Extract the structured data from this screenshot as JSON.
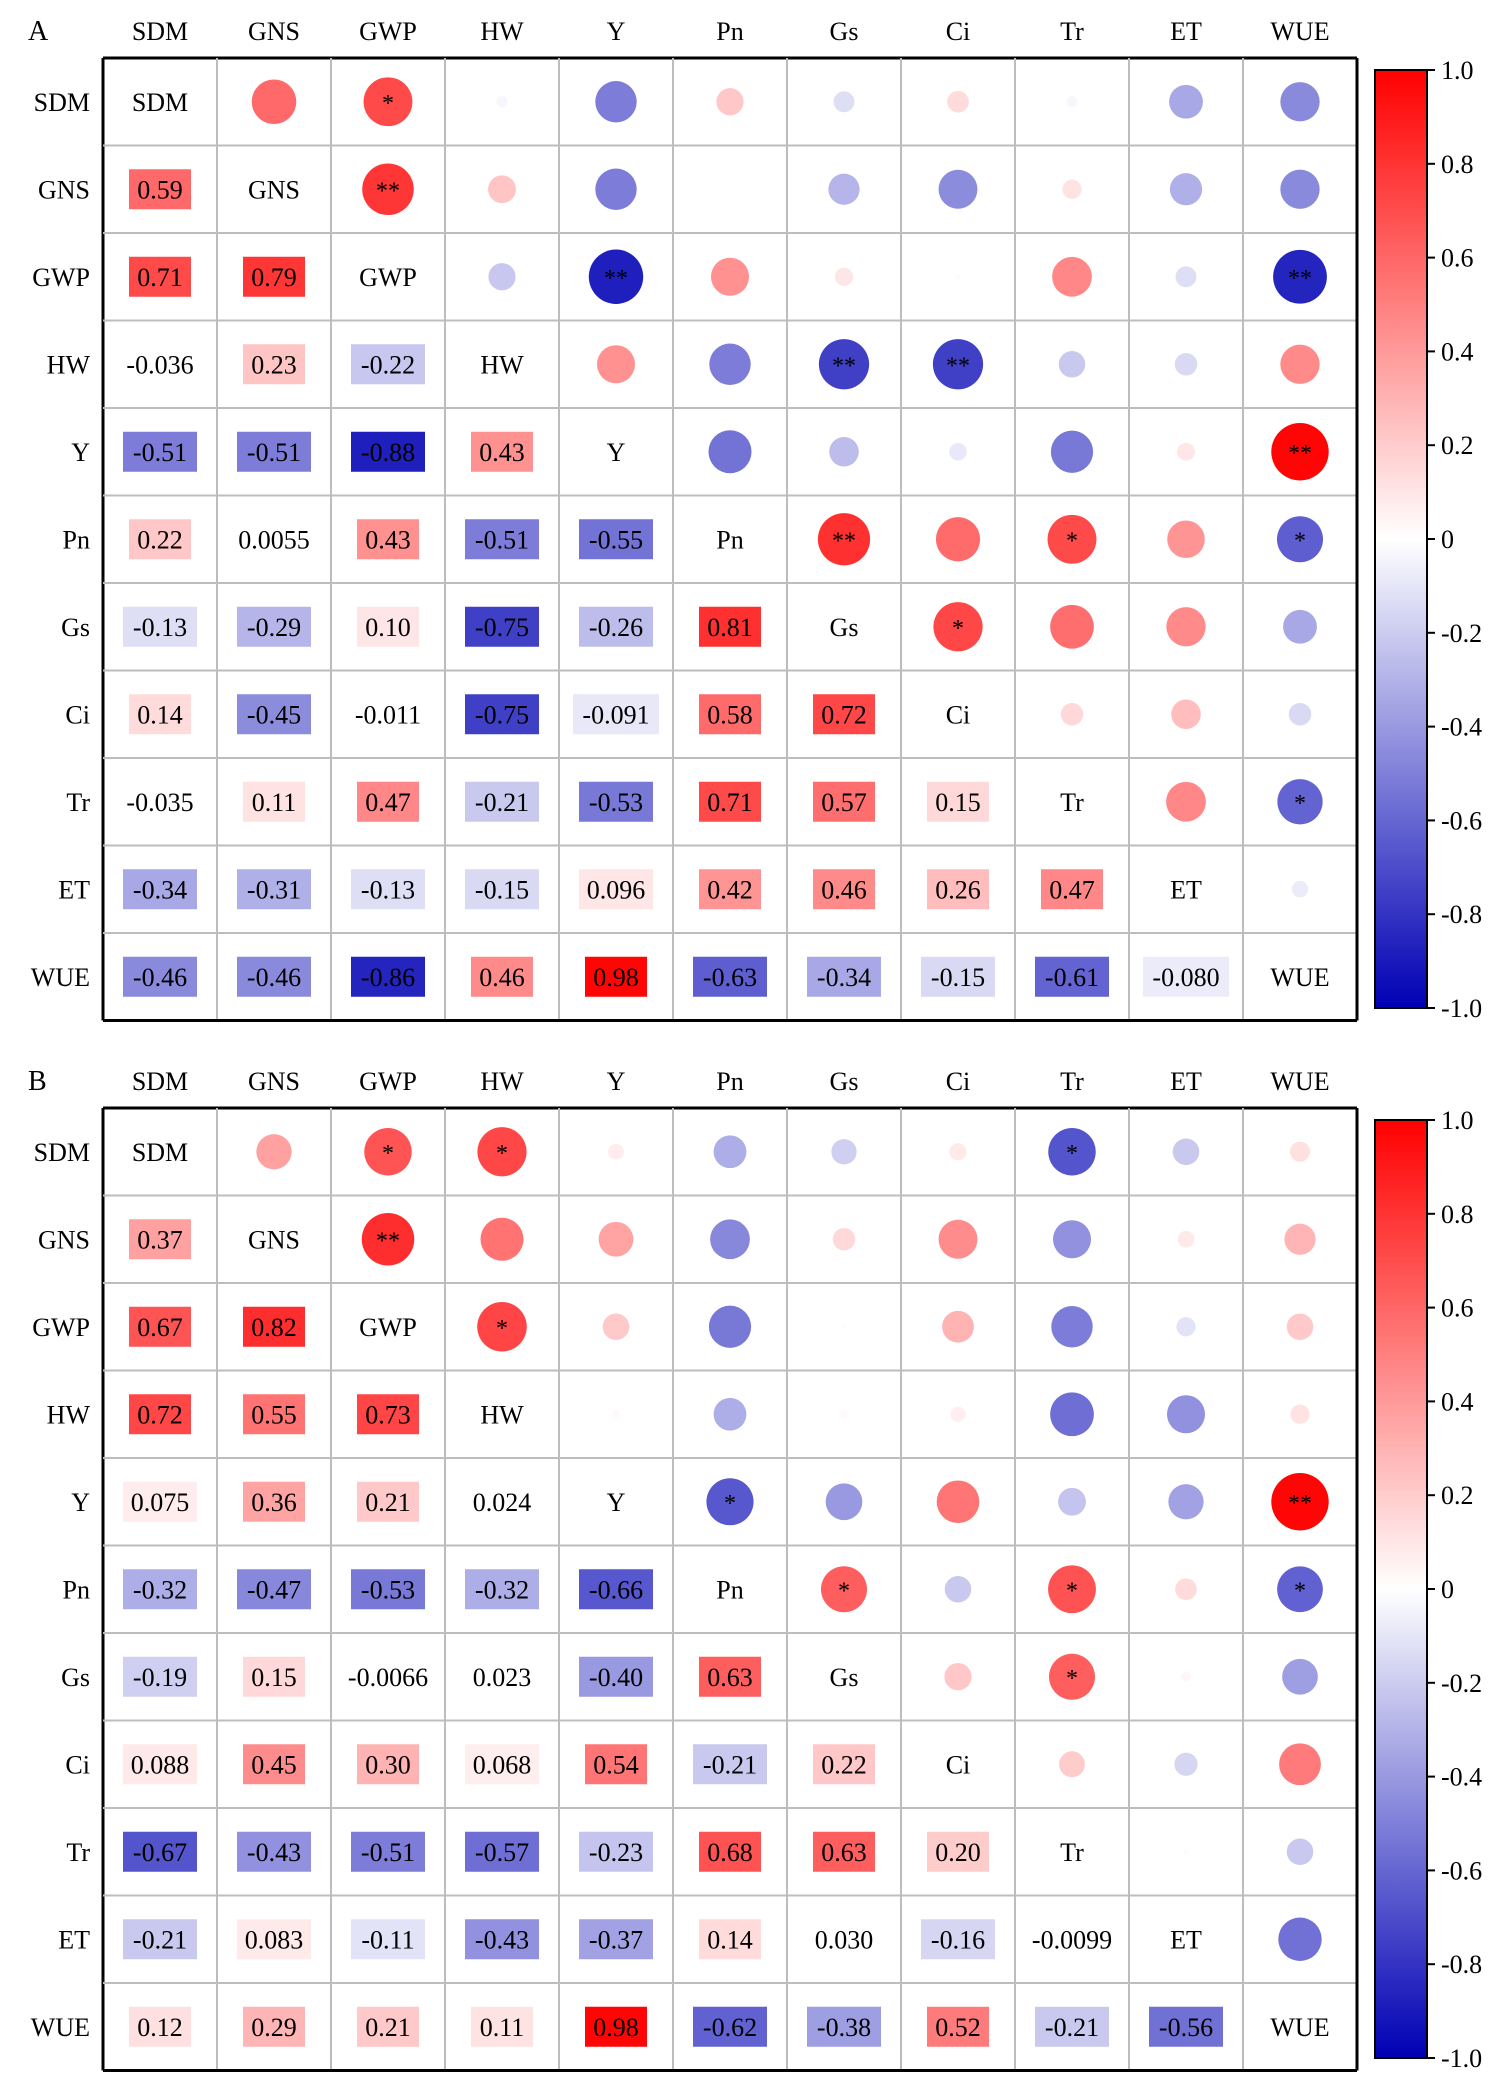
{
  "chart_data": [
    {
      "type": "heatmap",
      "panel_label": "A",
      "variables": [
        "SDM",
        "GNS",
        "GWP",
        "HW",
        "Y",
        "Pn",
        "Gs",
        "Ci",
        "Tr",
        "ET",
        "WUE"
      ],
      "lower_triangle_labels": [
        [],
        [
          "0.59"
        ],
        [
          "0.71",
          "0.79"
        ],
        [
          "-0.036",
          "0.23",
          "-0.22"
        ],
        [
          "-0.51",
          "-0.51",
          "-0.88",
          "0.43"
        ],
        [
          "0.22",
          "0.0055",
          "0.43",
          "-0.51",
          "-0.55"
        ],
        [
          "-0.13",
          "-0.29",
          "0.10",
          "-0.75",
          "-0.26",
          "0.81"
        ],
        [
          "0.14",
          "-0.45",
          "-0.011",
          "-0.75",
          "-0.091",
          "0.58",
          "0.72"
        ],
        [
          "-0.035",
          "0.11",
          "0.47",
          "-0.21",
          "-0.53",
          "0.71",
          "0.57",
          "0.15"
        ],
        [
          "-0.34",
          "-0.31",
          "-0.13",
          "-0.15",
          "0.096",
          "0.42",
          "0.46",
          "0.26",
          "0.47"
        ],
        [
          "-0.46",
          "-0.46",
          "-0.86",
          "0.46",
          "0.98",
          "-0.63",
          "-0.34",
          "-0.15",
          "-0.61",
          "-0.080"
        ]
      ],
      "significance": [
        {
          "row": 0,
          "col": 2,
          "mark": "*"
        },
        {
          "row": 1,
          "col": 2,
          "mark": "**"
        },
        {
          "row": 2,
          "col": 4,
          "mark": "**"
        },
        {
          "row": 2,
          "col": 10,
          "mark": "**"
        },
        {
          "row": 3,
          "col": 6,
          "mark": "**"
        },
        {
          "row": 3,
          "col": 7,
          "mark": "**"
        },
        {
          "row": 4,
          "col": 10,
          "mark": "**"
        },
        {
          "row": 5,
          "col": 6,
          "mark": "**"
        },
        {
          "row": 5,
          "col": 8,
          "mark": "*"
        },
        {
          "row": 5,
          "col": 10,
          "mark": "*"
        },
        {
          "row": 6,
          "col": 7,
          "mark": "*"
        },
        {
          "row": 8,
          "col": 10,
          "mark": "*"
        }
      ],
      "colorbar": {
        "range": [
          -1.0,
          1.0
        ],
        "ticks": [
          "1.0",
          "0.8",
          "0.6",
          "0.4",
          "0.2",
          "0",
          "-0.2",
          "-0.4",
          "-0.6",
          "-0.8",
          "-1.0"
        ],
        "colors": {
          "negative": "#0000b4",
          "zero": "#ffffff",
          "positive": "#ff0000"
        }
      }
    },
    {
      "type": "heatmap",
      "panel_label": "B",
      "variables": [
        "SDM",
        "GNS",
        "GWP",
        "HW",
        "Y",
        "Pn",
        "Gs",
        "Ci",
        "Tr",
        "ET",
        "WUE"
      ],
      "lower_triangle_labels": [
        [],
        [
          "0.37"
        ],
        [
          "0.67",
          "0.82"
        ],
        [
          "0.72",
          "0.55",
          "0.73"
        ],
        [
          "0.075",
          "0.36",
          "0.21",
          "0.024"
        ],
        [
          "-0.32",
          "-0.47",
          "-0.53",
          "-0.32",
          "-0.66"
        ],
        [
          "-0.19",
          "0.15",
          "-0.0066",
          "0.023",
          "-0.40",
          "0.63"
        ],
        [
          "0.088",
          "0.45",
          "0.30",
          "0.068",
          "0.54",
          "-0.21",
          "0.22"
        ],
        [
          "-0.67",
          "-0.43",
          "-0.51",
          "-0.57",
          "-0.23",
          "0.68",
          "0.63",
          "0.20"
        ],
        [
          "-0.21",
          "0.083",
          "-0.11",
          "-0.43",
          "-0.37",
          "0.14",
          "0.030",
          "-0.16",
          "-0.0099"
        ],
        [
          "0.12",
          "0.29",
          "0.21",
          "0.11",
          "0.98",
          "-0.62",
          "-0.38",
          "0.52",
          "-0.21",
          "-0.56"
        ]
      ],
      "significance": [
        {
          "row": 0,
          "col": 2,
          "mark": "*"
        },
        {
          "row": 0,
          "col": 3,
          "mark": "*"
        },
        {
          "row": 0,
          "col": 8,
          "mark": "*"
        },
        {
          "row": 1,
          "col": 2,
          "mark": "**"
        },
        {
          "row": 2,
          "col": 3,
          "mark": "*"
        },
        {
          "row": 4,
          "col": 5,
          "mark": "*"
        },
        {
          "row": 4,
          "col": 10,
          "mark": "**"
        },
        {
          "row": 5,
          "col": 6,
          "mark": "*"
        },
        {
          "row": 5,
          "col": 8,
          "mark": "*"
        },
        {
          "row": 5,
          "col": 10,
          "mark": "*"
        },
        {
          "row": 6,
          "col": 8,
          "mark": "*"
        }
      ],
      "colorbar": {
        "range": [
          -1.0,
          1.0
        ],
        "ticks": [
          "1.0",
          "0.8",
          "0.6",
          "0.4",
          "0.2",
          "0",
          "-0.2",
          "-0.4",
          "-0.6",
          "-0.8",
          "-1.0"
        ],
        "colors": {
          "negative": "#0000b4",
          "zero": "#ffffff",
          "positive": "#ff0000"
        }
      }
    }
  ]
}
